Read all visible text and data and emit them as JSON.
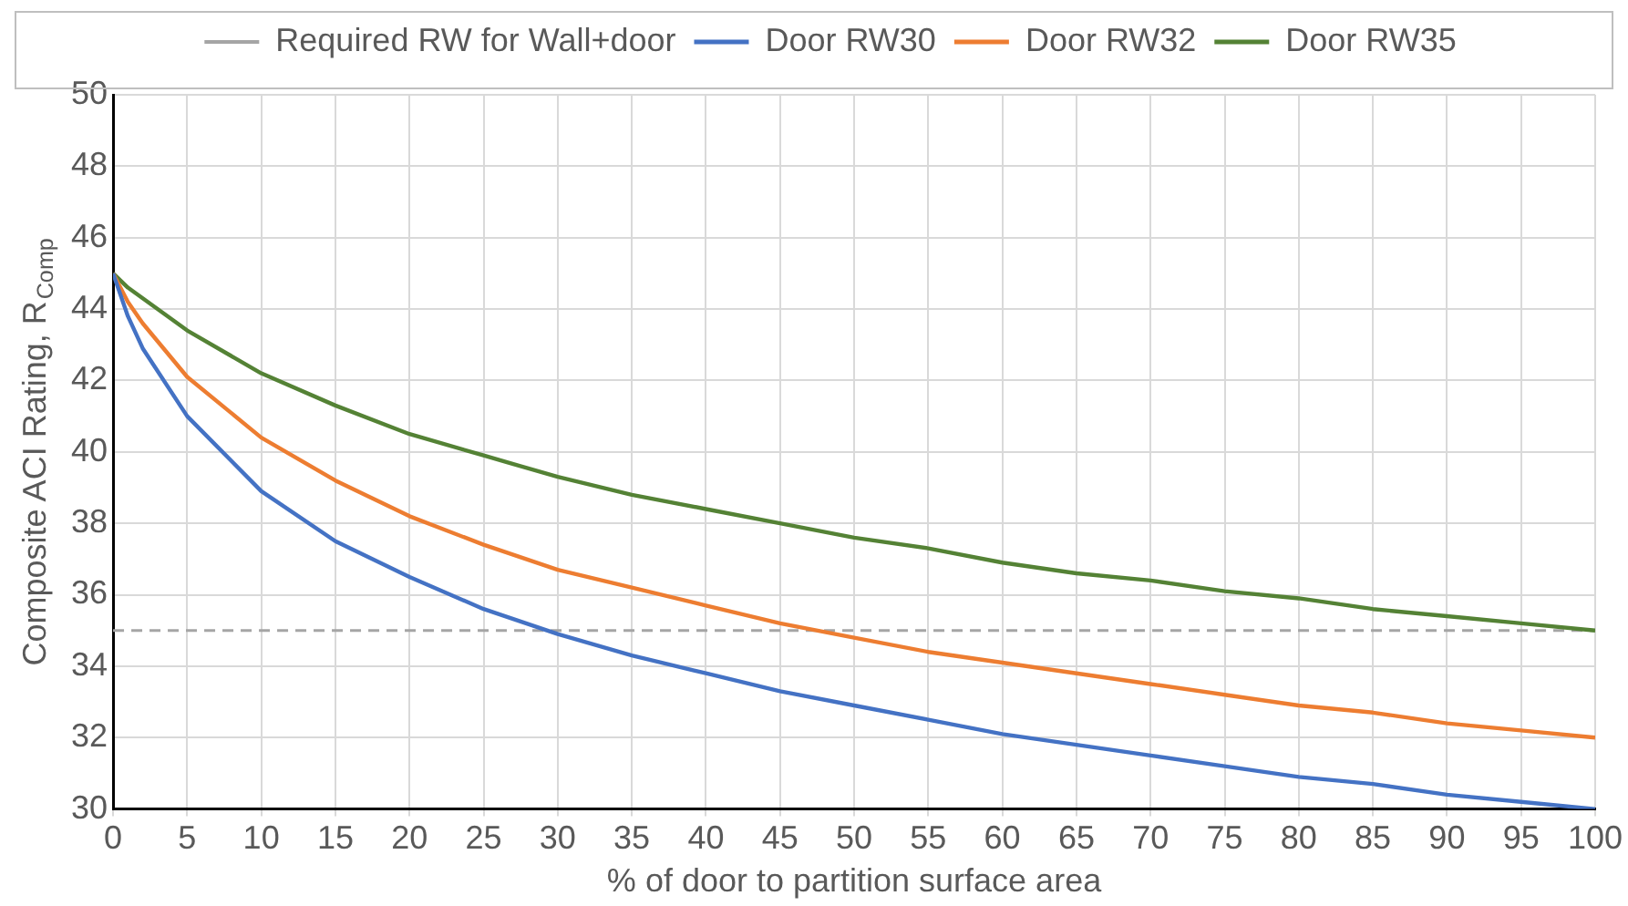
{
  "chart_data": {
    "type": "line",
    "xlabel": "% of door to partition surface area",
    "ylabel": "Composite ACI Rating, R$_{Comp}$",
    "x": [
      0,
      1,
      2,
      5,
      10,
      15,
      20,
      25,
      30,
      35,
      40,
      45,
      50,
      55,
      60,
      65,
      70,
      75,
      80,
      85,
      90,
      95,
      100
    ],
    "series": [
      {
        "name": "Door RW30",
        "color": "#4472c4",
        "values": [
          45,
          43.8,
          42.9,
          41.0,
          38.9,
          37.5,
          36.5,
          35.6,
          34.9,
          34.3,
          33.8,
          33.3,
          32.9,
          32.5,
          32.1,
          31.8,
          31.5,
          31.2,
          30.9,
          30.7,
          30.4,
          30.2,
          30.0
        ]
      },
      {
        "name": "Door RW32",
        "color": "#ed7d31",
        "values": [
          45,
          44.2,
          43.6,
          42.1,
          40.4,
          39.2,
          38.2,
          37.4,
          36.7,
          36.2,
          35.7,
          35.2,
          34.8,
          34.4,
          34.1,
          33.8,
          33.5,
          33.2,
          32.9,
          32.7,
          32.4,
          32.2,
          32.0
        ]
      },
      {
        "name": "Door RW35",
        "color": "#548235",
        "values": [
          45,
          44.6,
          44.3,
          43.4,
          42.2,
          41.3,
          40.5,
          39.9,
          39.3,
          38.8,
          38.4,
          38.0,
          37.6,
          37.3,
          36.9,
          36.6,
          36.4,
          36.1,
          35.9,
          35.6,
          35.4,
          35.2,
          35.0
        ]
      }
    ],
    "ref_lines": [
      {
        "axis": "y",
        "value": 35,
        "label": "Required RW for Wall+door",
        "color": "#a5a5a5",
        "line_style": "dashed"
      }
    ],
    "xlim": [
      0,
      100
    ],
    "xticks": [
      0,
      5,
      10,
      15,
      20,
      25,
      30,
      35,
      40,
      45,
      50,
      55,
      60,
      65,
      70,
      75,
      80,
      85,
      90,
      95,
      100
    ],
    "ylim": [
      30,
      50
    ],
    "yticks": [
      30,
      32,
      34,
      36,
      38,
      40,
      42,
      44,
      46,
      48,
      50
    ],
    "grid": true,
    "legend": "top",
    "marker": "none",
    "line_style": "solid"
  }
}
